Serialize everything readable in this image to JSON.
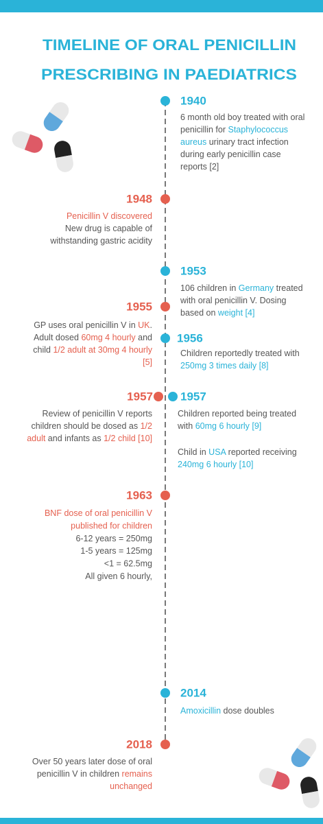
{
  "title": [
    "TIMELINE OF ORAL PENICILLIN",
    "PRESCRIBING IN PAEDIATRICS"
  ],
  "events": [
    {
      "year": "1940",
      "color": "#2ab3d8",
      "paragraphs": [
        [
          [
            "6 month old boy treated with oral"
          ],
          [
            "penicillin for ",
            {
              "text": "Staphylococcus",
              "color": "#2ab3d8"
            }
          ],
          [
            {
              "text": "aureus",
              "color": "#2ab3d8"
            },
            " urinary tract infection"
          ],
          [
            "during early penicillin case"
          ],
          [
            "reports [2]"
          ]
        ]
      ]
    },
    {
      "year": "1948",
      "color": "#e5604f",
      "paragraphs": [
        [
          [
            {
              "text": "Penicillin V discovered",
              "color": "#e5604f"
            }
          ],
          [
            "New drug is capable of"
          ],
          [
            "withstanding gastric acidity"
          ]
        ]
      ]
    },
    {
      "year": "1953",
      "color": "#2ab3d8",
      "paragraphs": [
        [
          [
            "106 children in ",
            {
              "text": "Germany",
              "color": "#2ab3d8"
            },
            " treated"
          ],
          [
            "with oral penicillin V. Dosing"
          ],
          [
            "based on ",
            {
              "text": "weight [4]",
              "color": "#2ab3d8"
            }
          ]
        ]
      ]
    },
    {
      "year": "1955",
      "color": "#e5604f",
      "paragraphs": [
        [
          [
            "GP uses oral penicillin V in ",
            {
              "text": "UK",
              "color": "#e5604f"
            },
            "."
          ],
          [
            "Adult dosed ",
            {
              "text": "60mg 4 hourly",
              "color": "#e5604f"
            },
            " and"
          ],
          [
            "child ",
            {
              "text": "1/2 adult at 30mg 4 hourly",
              "color": "#e5604f"
            }
          ],
          [
            {
              "text": "[5]",
              "color": "#e5604f"
            }
          ]
        ]
      ]
    },
    {
      "year": "1956",
      "color": "#2ab3d8",
      "paragraphs": [
        [
          [
            "Children reportedly treated with"
          ],
          [
            {
              "text": "250mg 3 times daily [8]",
              "color": "#2ab3d8"
            }
          ]
        ]
      ]
    },
    {
      "year": "1957",
      "color": "#e5604f",
      "paragraphs": [
        [
          [
            "Review of penicillin V reports"
          ],
          [
            "children should be dosed as ",
            {
              "text": "1/2",
              "color": "#e5604f"
            }
          ],
          [
            {
              "text": "adult",
              "color": "#e5604f"
            },
            " and infants as ",
            {
              "text": "1/2 child [10]",
              "color": "#e5604f"
            }
          ]
        ]
      ]
    },
    {
      "year": "1957",
      "color": "#2ab3d8",
      "paragraphs": [
        [
          [
            "Children reported being treated"
          ],
          [
            "with ",
            {
              "text": "60mg 6 hourly [9]",
              "color": "#2ab3d8"
            }
          ]
        ],
        [
          [
            "Child in ",
            {
              "text": "USA",
              "color": "#2ab3d8"
            },
            " reported receiving"
          ],
          [
            {
              "text": "240mg 6 hourly [10]",
              "color": "#2ab3d8"
            }
          ]
        ]
      ]
    },
    {
      "year": "1963",
      "color": "#e5604f",
      "paragraphs": [
        [
          [
            {
              "text": "BNF dose of oral penicillin V",
              "color": "#e5604f"
            }
          ],
          [
            {
              "text": "published for children",
              "color": "#e5604f"
            }
          ],
          [
            "6-12 years = 250mg"
          ],
          [
            "1-5 years = 125mg"
          ],
          [
            "<1 = 62.5mg"
          ],
          [
            "All given 6 hourly,"
          ]
        ]
      ]
    },
    {
      "year": "2014",
      "color": "#2ab3d8",
      "paragraphs": [
        [
          [
            {
              "text": "Amoxicillin",
              "color": "#2ab3d8"
            },
            " dose doubles"
          ]
        ]
      ]
    },
    {
      "year": "2018",
      "color": "#e5604f",
      "paragraphs": [
        [
          [
            "Over 50 years later dose of oral"
          ],
          [
            "penicillin V in children ",
            {
              "text": "remains",
              "color": "#e5604f"
            }
          ],
          [
            {
              "text": "unchanged",
              "color": "#e5604f"
            }
          ]
        ]
      ]
    }
  ]
}
